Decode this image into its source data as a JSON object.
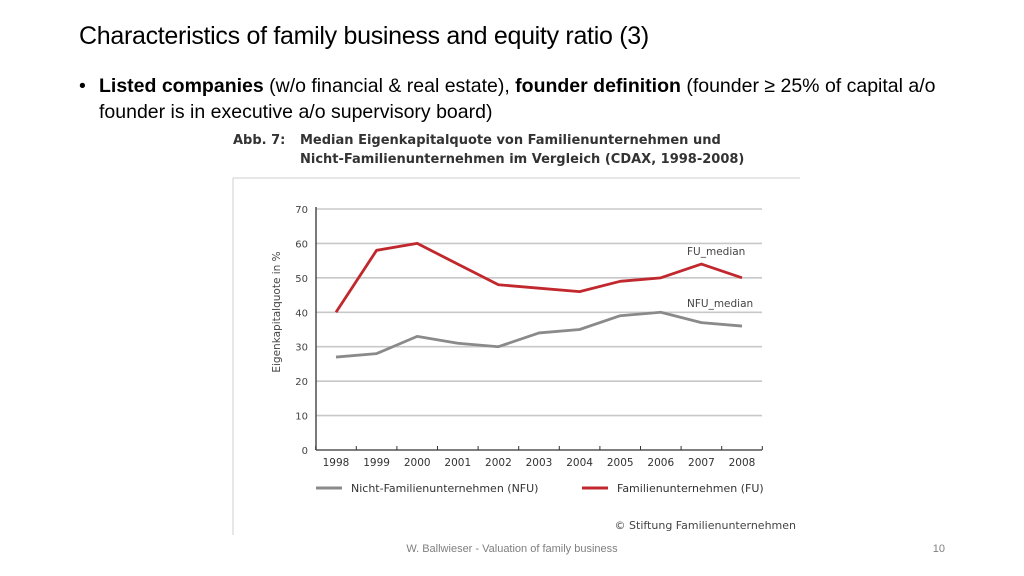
{
  "slide": {
    "title": "Characteristics of family business and equity ratio (3)",
    "bullet": {
      "part1": "Listed companies",
      "part2": " (w/o financial & real estate), ",
      "part3": "founder definition",
      "part4": " (founder ≥ 25% of capital a/o founder is in executive a/o supervisory board)"
    },
    "footer": "W. Ballwieser - Valuation of family business",
    "page_number": "10"
  },
  "figure": {
    "label": "Abb. 7:",
    "title_line1": "Median Eigenkapitalquote von Familienunternehmen und",
    "title_line2": "Nicht-Familienunternehmen im Vergleich (CDAX, 1998-2008)",
    "copyright": "© Stiftung Familienunternehmen"
  },
  "chart_data": {
    "type": "line",
    "title": "Median Eigenkapitalquote von Familienunternehmen und Nicht-Familienunternehmen im Vergleich (CDAX, 1998-2008)",
    "xlabel": "",
    "ylabel": "Eigenkapitalquote in %",
    "categories": [
      "1998",
      "1999",
      "2000",
      "2001",
      "2002",
      "2003",
      "2004",
      "2005",
      "2006",
      "2007",
      "2008"
    ],
    "ylim": [
      0,
      70
    ],
    "yticks": [
      0,
      10,
      20,
      30,
      40,
      50,
      60,
      70
    ],
    "grid": true,
    "legend_position": "bottom",
    "series": [
      {
        "name": "Nicht-Familienunternehmen (NFU)",
        "label": "NFU_median",
        "color": "#8a8a8a",
        "values": [
          27,
          28,
          33,
          31,
          30,
          34,
          35,
          39,
          40,
          37,
          36
        ]
      },
      {
        "name": "Familienunternehmen (FU)",
        "label": "FU_median",
        "color": "#c0282d",
        "values": [
          40,
          58,
          60,
          54,
          48,
          47,
          46,
          49,
          50,
          54,
          50
        ]
      }
    ]
  }
}
